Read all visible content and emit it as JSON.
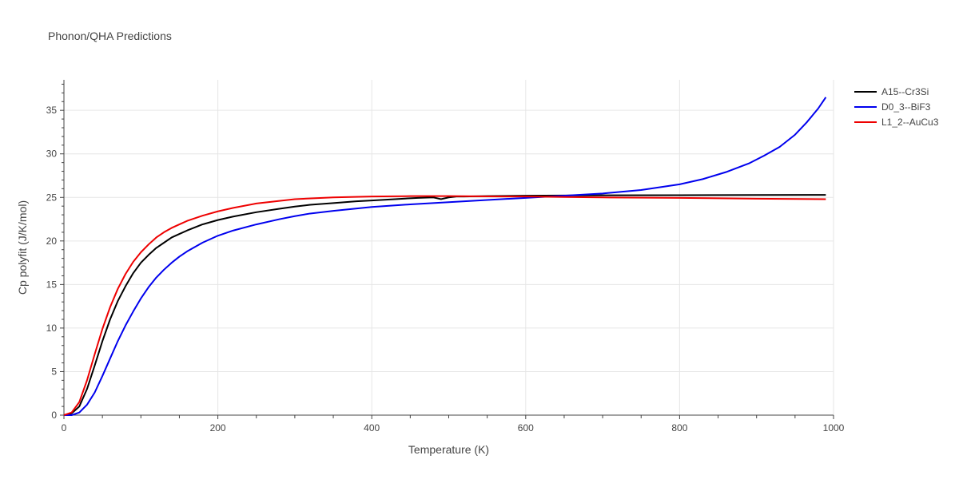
{
  "chart_data": {
    "type": "line",
    "title": "Phonon/QHA Predictions",
    "xlabel": "Temperature (K)",
    "ylabel": "Cp polyfit (J/K/mol)",
    "xlim": [
      0,
      1000
    ],
    "ylim": [
      0,
      38.5
    ],
    "x_ticks": [
      0,
      200,
      400,
      600,
      800,
      1000
    ],
    "y_ticks": [
      0,
      5,
      10,
      15,
      20,
      25,
      30,
      35
    ],
    "grid": true,
    "legend_position": "top-right",
    "series": [
      {
        "name": "A15--Cr3Si",
        "color": "#000000",
        "x": [
          0,
          10,
          20,
          30,
          40,
          50,
          60,
          70,
          80,
          90,
          100,
          110,
          120,
          130,
          140,
          150,
          160,
          180,
          200,
          220,
          250,
          280,
          300,
          320,
          350,
          380,
          400,
          430,
          460,
          480,
          490,
          500,
          510,
          520,
          550,
          600,
          650,
          700,
          800,
          900,
          990
        ],
        "y": [
          0,
          0.2,
          1.0,
          3.0,
          5.7,
          8.5,
          11.0,
          13.1,
          14.8,
          16.3,
          17.5,
          18.4,
          19.2,
          19.8,
          20.4,
          20.8,
          21.2,
          21.9,
          22.4,
          22.8,
          23.3,
          23.7,
          23.95,
          24.15,
          24.35,
          24.55,
          24.65,
          24.8,
          24.95,
          25.0,
          24.8,
          25.0,
          25.1,
          25.1,
          25.15,
          25.2,
          25.22,
          25.24,
          25.26,
          25.28,
          25.29
        ]
      },
      {
        "name": "D0_3--BiF3",
        "color": "#0000ee",
        "x": [
          0,
          10,
          20,
          30,
          40,
          50,
          60,
          70,
          80,
          90,
          100,
          110,
          120,
          130,
          140,
          150,
          160,
          180,
          200,
          220,
          250,
          280,
          300,
          320,
          350,
          400,
          450,
          500,
          550,
          600,
          650,
          700,
          750,
          800,
          830,
          860,
          890,
          910,
          930,
          950,
          965,
          980,
          990
        ],
        "y": [
          0,
          0.0,
          0.3,
          1.2,
          2.6,
          4.5,
          6.5,
          8.5,
          10.3,
          11.9,
          13.4,
          14.7,
          15.8,
          16.7,
          17.5,
          18.2,
          18.8,
          19.8,
          20.6,
          21.2,
          21.9,
          22.5,
          22.85,
          23.15,
          23.45,
          23.9,
          24.2,
          24.45,
          24.7,
          24.95,
          25.2,
          25.45,
          25.85,
          26.5,
          27.1,
          27.9,
          28.9,
          29.8,
          30.8,
          32.2,
          33.6,
          35.2,
          36.5
        ]
      },
      {
        "name": "L1_2--AuCu3",
        "color": "#ee0000",
        "x": [
          0,
          10,
          20,
          30,
          40,
          50,
          60,
          70,
          80,
          90,
          100,
          110,
          120,
          130,
          140,
          150,
          160,
          180,
          200,
          220,
          250,
          280,
          300,
          350,
          400,
          450,
          500,
          550,
          600,
          650,
          700,
          800,
          900,
          990
        ],
        "y": [
          0,
          0.3,
          1.5,
          4.0,
          7.0,
          9.9,
          12.4,
          14.5,
          16.2,
          17.6,
          18.7,
          19.6,
          20.4,
          21.0,
          21.5,
          21.9,
          22.3,
          22.9,
          23.4,
          23.8,
          24.3,
          24.6,
          24.8,
          25.0,
          25.1,
          25.15,
          25.15,
          25.12,
          25.1,
          25.05,
          25.0,
          24.95,
          24.85,
          24.8
        ]
      }
    ]
  }
}
